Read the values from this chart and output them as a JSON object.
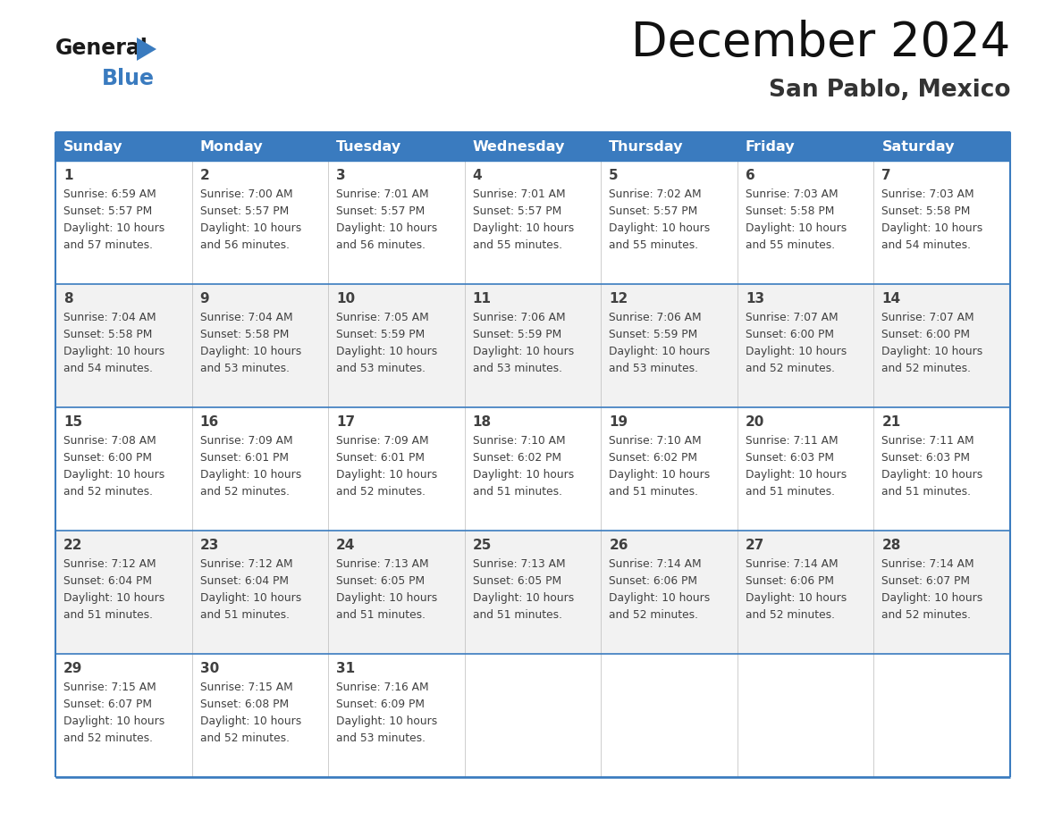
{
  "title": "December 2024",
  "subtitle": "San Pablo, Mexico",
  "header_color": "#3A7BBF",
  "header_text_color": "#FFFFFF",
  "cell_bg_white": "#FFFFFF",
  "cell_bg_gray": "#F2F2F2",
  "border_color": "#3A7BBF",
  "text_color": "#404040",
  "logo_color": "#3A7BBF",
  "logo_black": "#1A1A1A",
  "days_of_week": [
    "Sunday",
    "Monday",
    "Tuesday",
    "Wednesday",
    "Thursday",
    "Friday",
    "Saturday"
  ],
  "calendar": [
    [
      {
        "day": "1",
        "sunrise": "6:59 AM",
        "sunset": "5:57 PM",
        "minutes": "57"
      },
      {
        "day": "2",
        "sunrise": "7:00 AM",
        "sunset": "5:57 PM",
        "minutes": "56"
      },
      {
        "day": "3",
        "sunrise": "7:01 AM",
        "sunset": "5:57 PM",
        "minutes": "56"
      },
      {
        "day": "4",
        "sunrise": "7:01 AM",
        "sunset": "5:57 PM",
        "minutes": "55"
      },
      {
        "day": "5",
        "sunrise": "7:02 AM",
        "sunset": "5:57 PM",
        "minutes": "55"
      },
      {
        "day": "6",
        "sunrise": "7:03 AM",
        "sunset": "5:58 PM",
        "minutes": "55"
      },
      {
        "day": "7",
        "sunrise": "7:03 AM",
        "sunset": "5:58 PM",
        "minutes": "54"
      }
    ],
    [
      {
        "day": "8",
        "sunrise": "7:04 AM",
        "sunset": "5:58 PM",
        "minutes": "54"
      },
      {
        "day": "9",
        "sunrise": "7:04 AM",
        "sunset": "5:58 PM",
        "minutes": "53"
      },
      {
        "day": "10",
        "sunrise": "7:05 AM",
        "sunset": "5:59 PM",
        "minutes": "53"
      },
      {
        "day": "11",
        "sunrise": "7:06 AM",
        "sunset": "5:59 PM",
        "minutes": "53"
      },
      {
        "day": "12",
        "sunrise": "7:06 AM",
        "sunset": "5:59 PM",
        "minutes": "53"
      },
      {
        "day": "13",
        "sunrise": "7:07 AM",
        "sunset": "6:00 PM",
        "minutes": "52"
      },
      {
        "day": "14",
        "sunrise": "7:07 AM",
        "sunset": "6:00 PM",
        "minutes": "52"
      }
    ],
    [
      {
        "day": "15",
        "sunrise": "7:08 AM",
        "sunset": "6:00 PM",
        "minutes": "52"
      },
      {
        "day": "16",
        "sunrise": "7:09 AM",
        "sunset": "6:01 PM",
        "minutes": "52"
      },
      {
        "day": "17",
        "sunrise": "7:09 AM",
        "sunset": "6:01 PM",
        "minutes": "52"
      },
      {
        "day": "18",
        "sunrise": "7:10 AM",
        "sunset": "6:02 PM",
        "minutes": "51"
      },
      {
        "day": "19",
        "sunrise": "7:10 AM",
        "sunset": "6:02 PM",
        "minutes": "51"
      },
      {
        "day": "20",
        "sunrise": "7:11 AM",
        "sunset": "6:03 PM",
        "minutes": "51"
      },
      {
        "day": "21",
        "sunrise": "7:11 AM",
        "sunset": "6:03 PM",
        "minutes": "51"
      }
    ],
    [
      {
        "day": "22",
        "sunrise": "7:12 AM",
        "sunset": "6:04 PM",
        "minutes": "51"
      },
      {
        "day": "23",
        "sunrise": "7:12 AM",
        "sunset": "6:04 PM",
        "minutes": "51"
      },
      {
        "day": "24",
        "sunrise": "7:13 AM",
        "sunset": "6:05 PM",
        "minutes": "51"
      },
      {
        "day": "25",
        "sunrise": "7:13 AM",
        "sunset": "6:05 PM",
        "minutes": "51"
      },
      {
        "day": "26",
        "sunrise": "7:14 AM",
        "sunset": "6:06 PM",
        "minutes": "52"
      },
      {
        "day": "27",
        "sunrise": "7:14 AM",
        "sunset": "6:06 PM",
        "minutes": "52"
      },
      {
        "day": "28",
        "sunrise": "7:14 AM",
        "sunset": "6:07 PM",
        "minutes": "52"
      }
    ],
    [
      {
        "day": "29",
        "sunrise": "7:15 AM",
        "sunset": "6:07 PM",
        "minutes": "52"
      },
      {
        "day": "30",
        "sunrise": "7:15 AM",
        "sunset": "6:08 PM",
        "minutes": "52"
      },
      {
        "day": "31",
        "sunrise": "7:16 AM",
        "sunset": "6:09 PM",
        "minutes": "53"
      },
      null,
      null,
      null,
      null
    ]
  ]
}
